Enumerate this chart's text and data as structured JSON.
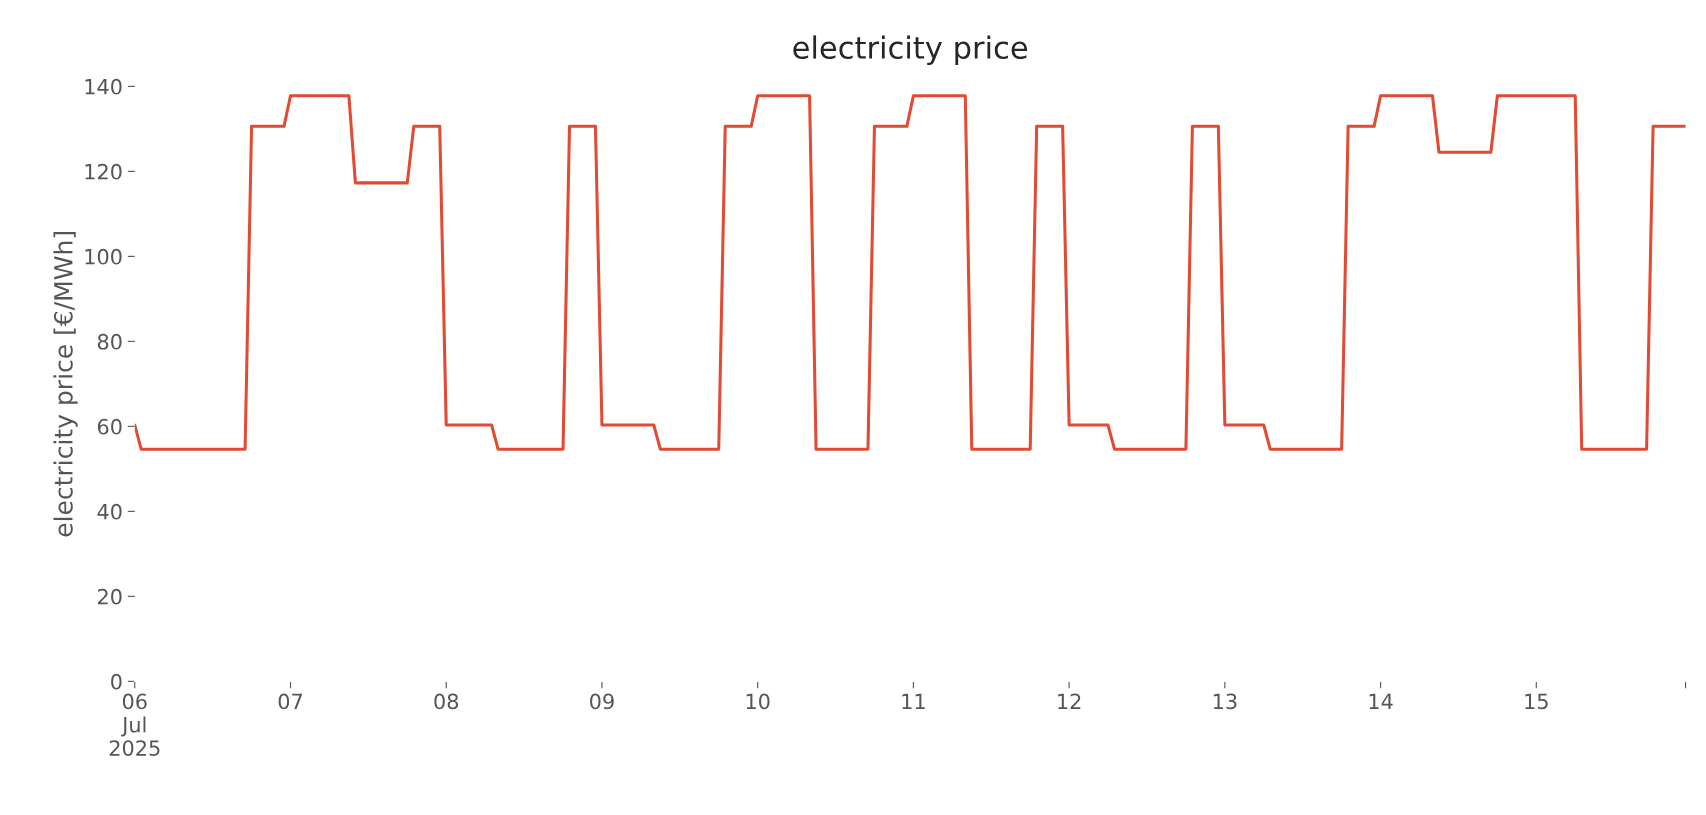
{
  "chart_data": {
    "type": "line",
    "title": "electricity price",
    "ylabel": "electricity price [€/MWh]",
    "x": [
      "2025-07-06T00:00",
      "2025-07-06T01:00",
      "2025-07-06T17:00",
      "2025-07-06T18:00",
      "2025-07-06T23:00",
      "2025-07-07T00:00",
      "2025-07-07T09:00",
      "2025-07-07T10:00",
      "2025-07-07T18:00",
      "2025-07-07T19:00",
      "2025-07-07T23:00",
      "2025-07-08T00:00",
      "2025-07-08T07:00",
      "2025-07-08T08:00",
      "2025-07-08T18:00",
      "2025-07-08T19:00",
      "2025-07-08T23:00",
      "2025-07-09T00:00",
      "2025-07-09T08:00",
      "2025-07-09T09:00",
      "2025-07-09T18:00",
      "2025-07-09T19:00",
      "2025-07-09T23:00",
      "2025-07-10T00:00",
      "2025-07-10T08:00",
      "2025-07-10T09:00",
      "2025-07-10T17:00",
      "2025-07-10T18:00",
      "2025-07-10T23:00",
      "2025-07-11T00:00",
      "2025-07-11T08:00",
      "2025-07-11T09:00",
      "2025-07-11T18:00",
      "2025-07-11T19:00",
      "2025-07-11T23:00",
      "2025-07-12T00:00",
      "2025-07-12T06:00",
      "2025-07-12T07:00",
      "2025-07-12T18:00",
      "2025-07-12T19:00",
      "2025-07-12T23:00",
      "2025-07-13T00:00",
      "2025-07-13T06:00",
      "2025-07-13T07:00",
      "2025-07-13T18:00",
      "2025-07-13T19:00",
      "2025-07-13T23:00",
      "2025-07-14T00:00",
      "2025-07-14T08:00",
      "2025-07-14T09:00",
      "2025-07-14T17:00",
      "2025-07-14T18:00",
      "2025-07-15T06:00",
      "2025-07-15T07:00",
      "2025-07-15T17:00",
      "2025-07-15T18:00",
      "2025-07-15T23:00"
    ],
    "series": [
      {
        "color": "#e24a33",
        "values": [
          60.3,
          54.6,
          54.6,
          130.6,
          130.6,
          137.8,
          137.8,
          117.3,
          117.3,
          130.6,
          130.6,
          60.3,
          60.3,
          54.6,
          54.6,
          130.6,
          130.6,
          60.3,
          60.3,
          54.6,
          54.6,
          130.6,
          130.6,
          137.8,
          137.8,
          54.6,
          54.6,
          130.6,
          130.6,
          137.8,
          137.8,
          54.6,
          54.6,
          130.6,
          130.6,
          60.3,
          60.3,
          54.6,
          54.6,
          130.6,
          130.6,
          60.3,
          60.3,
          54.6,
          54.6,
          130.6,
          130.6,
          137.8,
          137.8,
          124.5,
          124.5,
          137.8,
          137.8,
          54.6,
          54.6,
          130.6,
          130.6
        ]
      }
    ],
    "xlim": [
      "2025-07-06T00:00",
      "2025-07-15T23:00"
    ],
    "xticks": [
      {
        "value": "2025-07-06",
        "label": "06\nJul\n2025"
      },
      {
        "value": "2025-07-07",
        "label": "07"
      },
      {
        "value": "2025-07-08",
        "label": "08"
      },
      {
        "value": "2025-07-09",
        "label": "09"
      },
      {
        "value": "2025-07-10",
        "label": "10"
      },
      {
        "value": "2025-07-11",
        "label": "11"
      },
      {
        "value": "2025-07-12",
        "label": "12"
      },
      {
        "value": "2025-07-13",
        "label": "13"
      },
      {
        "value": "2025-07-14",
        "label": "14"
      },
      {
        "value": "2025-07-15",
        "label": "15"
      },
      {
        "value": "2025-07-15T23:00",
        "label": null
      }
    ],
    "ylim": [
      0,
      140
    ],
    "yticks": [
      0,
      20,
      40,
      60,
      80,
      100,
      120,
      140
    ],
    "grid": false,
    "legend": false,
    "line_style": "solid",
    "marker": "none"
  }
}
